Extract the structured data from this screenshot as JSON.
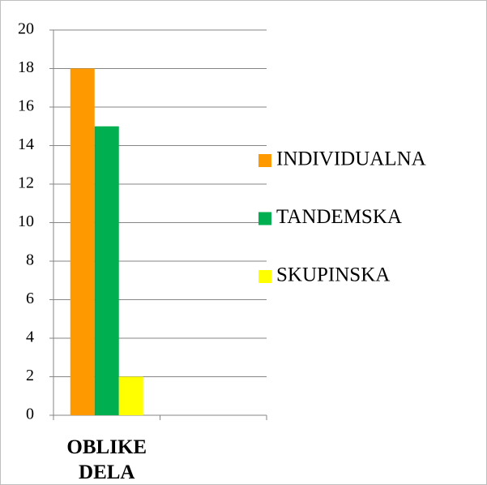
{
  "chart_data": {
    "type": "bar",
    "categories": [
      "OBLIKE DELA",
      null
    ],
    "series": [
      {
        "name": "INDIVIDUALNA",
        "color": "#ff9900",
        "values": [
          18,
          null
        ]
      },
      {
        "name": "TANDEMSKA",
        "color": "#00b050",
        "values": [
          15,
          null
        ]
      },
      {
        "name": "SKUPINSKA",
        "color": "#ffff00",
        "values": [
          2,
          null
        ]
      }
    ],
    "ylim": [
      0,
      20
    ],
    "yticks": [
      0,
      2,
      4,
      6,
      8,
      10,
      12,
      14,
      16,
      18,
      20
    ],
    "grid": true,
    "legend": "right"
  }
}
